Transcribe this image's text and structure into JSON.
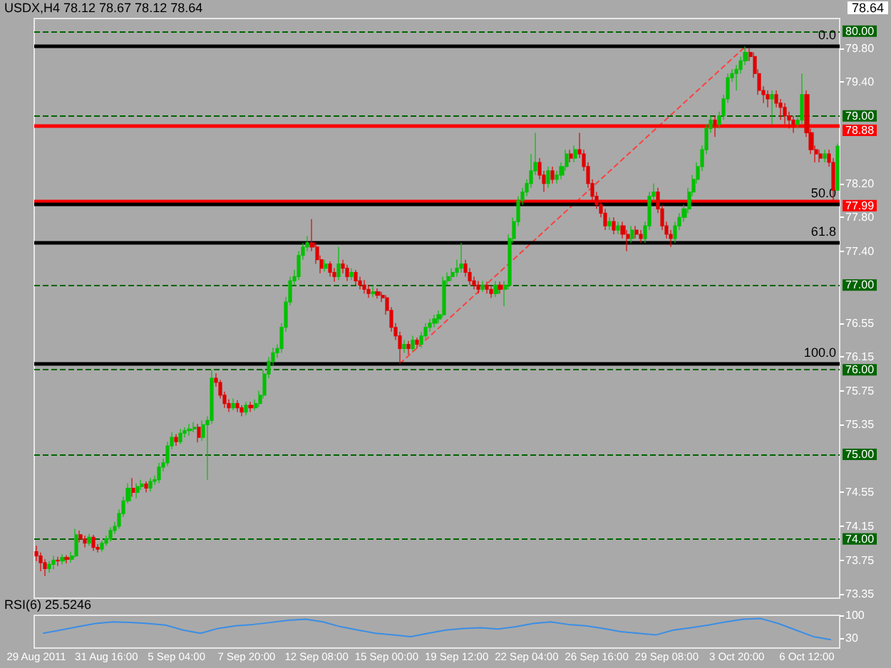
{
  "chart_data": [
    {
      "type": "candlestick",
      "title": "USDX,H4 78.12 78.67 78.12 78.64",
      "categories": [
        "29 Aug 2011",
        null,
        null,
        null,
        null,
        null,
        null,
        null,
        null,
        null,
        null,
        null,
        null,
        null,
        null,
        null,
        "31 Aug 16:00",
        null,
        null,
        null,
        null,
        null,
        null,
        null,
        null,
        null,
        null,
        null,
        null,
        null,
        null,
        null,
        "5 Sep 04:00",
        null,
        null,
        null,
        null,
        null,
        null,
        null,
        null,
        null,
        null,
        null,
        null,
        null,
        null,
        null,
        "7 Sep 20:00",
        null,
        null,
        null,
        null,
        null,
        null,
        null,
        null,
        null,
        null,
        null,
        null,
        null,
        null,
        null,
        "12 Sep 08:00",
        null,
        null,
        null,
        null,
        null,
        null,
        null,
        null,
        null,
        null,
        null,
        null,
        null,
        null,
        null,
        "15 Sep 00:00",
        null,
        null,
        null,
        null,
        null,
        null,
        null,
        null,
        null,
        null,
        null,
        null,
        null,
        null,
        null,
        "19 Sep 12:00",
        null,
        null,
        null,
        null,
        null,
        null,
        null,
        null,
        null,
        null,
        null,
        null,
        null,
        null,
        null,
        "22 Sep 04:00",
        null,
        null,
        null,
        null,
        null,
        null,
        null,
        null,
        null,
        null,
        null,
        null,
        null,
        null,
        null,
        "26 Sep 16:00",
        null,
        null,
        null,
        null,
        null,
        null,
        null,
        null,
        null,
        null,
        null,
        null,
        null,
        null,
        null,
        "29 Sep 08:00",
        null,
        null,
        null,
        null,
        null,
        null,
        null,
        null,
        null,
        null,
        null,
        null,
        null,
        null,
        null,
        "3 Oct 20:00",
        null,
        null,
        null,
        null,
        null,
        null,
        null,
        null,
        null,
        null,
        null,
        null,
        null,
        null,
        null,
        "6 Oct 12:00",
        null,
        null,
        null,
        null,
        null,
        null,
        null
      ],
      "ohlc": [
        [
          73.85,
          73.92,
          73.74,
          73.8
        ],
        [
          73.8,
          73.84,
          73.62,
          73.72
        ],
        [
          73.72,
          73.76,
          73.56,
          73.65
        ],
        [
          73.65,
          73.74,
          73.6,
          73.7
        ],
        [
          73.7,
          73.8,
          73.64,
          73.75
        ],
        [
          73.75,
          73.79,
          73.68,
          73.74
        ],
        [
          73.74,
          73.82,
          73.7,
          73.78
        ],
        [
          73.78,
          73.81,
          73.71,
          73.76
        ],
        [
          73.76,
          73.85,
          73.72,
          73.8
        ],
        [
          73.8,
          74.12,
          73.78,
          74.05
        ],
        [
          74.05,
          74.1,
          73.96,
          74.0
        ],
        [
          74.0,
          74.04,
          73.9,
          73.95
        ],
        [
          73.95,
          74.06,
          73.92,
          74.02
        ],
        [
          74.02,
          74.05,
          73.86,
          73.9
        ],
        [
          73.9,
          73.94,
          73.84,
          73.88
        ],
        [
          73.88,
          73.98,
          73.85,
          73.95
        ],
        [
          73.95,
          74.04,
          73.92,
          74.0
        ],
        [
          74.0,
          74.14,
          73.97,
          74.1
        ],
        [
          74.1,
          74.2,
          74.06,
          74.15
        ],
        [
          74.15,
          74.35,
          74.12,
          74.3
        ],
        [
          74.3,
          74.5,
          74.26,
          74.45
        ],
        [
          74.45,
          74.66,
          74.42,
          74.6
        ],
        [
          74.6,
          74.72,
          74.5,
          74.55
        ],
        [
          74.55,
          74.66,
          74.48,
          74.62
        ],
        [
          74.62,
          74.7,
          74.58,
          74.65
        ],
        [
          74.65,
          74.68,
          74.55,
          74.6
        ],
        [
          74.6,
          74.72,
          74.56,
          74.68
        ],
        [
          74.68,
          74.75,
          74.64,
          74.7
        ],
        [
          74.7,
          74.9,
          74.66,
          74.85
        ],
        [
          74.85,
          74.95,
          74.8,
          74.9
        ],
        [
          74.9,
          75.15,
          74.86,
          75.1
        ],
        [
          75.1,
          75.26,
          75.06,
          75.2
        ],
        [
          75.2,
          75.24,
          75.1,
          75.15
        ],
        [
          75.15,
          75.3,
          75.12,
          75.25
        ],
        [
          75.25,
          75.32,
          75.2,
          75.28
        ],
        [
          75.28,
          75.36,
          75.22,
          75.3
        ],
        [
          75.3,
          75.38,
          75.26,
          75.32
        ],
        [
          75.32,
          75.36,
          75.14,
          75.2
        ],
        [
          75.2,
          75.4,
          75.16,
          75.35
        ],
        [
          75.35,
          75.45,
          74.7,
          75.4
        ],
        [
          75.4,
          76.0,
          75.36,
          75.9
        ],
        [
          75.9,
          75.96,
          75.8,
          75.85
        ],
        [
          75.85,
          75.88,
          75.66,
          75.7
        ],
        [
          75.7,
          75.74,
          75.55,
          75.6
        ],
        [
          75.6,
          75.65,
          75.5,
          75.55
        ],
        [
          75.55,
          75.66,
          75.52,
          75.6
        ],
        [
          75.6,
          75.64,
          75.5,
          75.55
        ],
        [
          75.55,
          75.58,
          75.45,
          75.5
        ],
        [
          75.5,
          75.62,
          75.46,
          75.58
        ],
        [
          75.58,
          75.62,
          75.5,
          75.55
        ],
        [
          75.55,
          75.65,
          75.52,
          75.6
        ],
        [
          75.6,
          75.75,
          75.56,
          75.7
        ],
        [
          75.7,
          76.0,
          75.66,
          75.95
        ],
        [
          75.95,
          76.15,
          75.9,
          76.1
        ],
        [
          76.1,
          76.26,
          76.05,
          76.2
        ],
        [
          76.2,
          76.3,
          76.14,
          76.25
        ],
        [
          76.25,
          76.55,
          76.2,
          76.5
        ],
        [
          76.5,
          76.86,
          76.45,
          76.8
        ],
        [
          76.8,
          77.1,
          76.76,
          77.05
        ],
        [
          77.05,
          77.18,
          77.0,
          77.1
        ],
        [
          77.1,
          77.4,
          77.06,
          77.35
        ],
        [
          77.35,
          77.5,
          77.3,
          77.45
        ],
        [
          77.45,
          77.58,
          77.4,
          77.5
        ],
        [
          77.5,
          77.78,
          77.4,
          77.45
        ],
        [
          77.45,
          77.5,
          77.25,
          77.3
        ],
        [
          77.3,
          77.35,
          77.14,
          77.2
        ],
        [
          77.2,
          77.3,
          77.16,
          77.25
        ],
        [
          77.25,
          77.28,
          77.1,
          77.15
        ],
        [
          77.15,
          77.2,
          77.04,
          77.1
        ],
        [
          77.1,
          77.45,
          77.06,
          77.25
        ],
        [
          77.25,
          77.3,
          77.14,
          77.2
        ],
        [
          77.2,
          77.24,
          77.05,
          77.1
        ],
        [
          77.1,
          77.2,
          77.06,
          77.15
        ],
        [
          77.15,
          77.18,
          77.0,
          77.05
        ],
        [
          77.05,
          77.1,
          76.95,
          77.0
        ],
        [
          77.0,
          77.06,
          76.9,
          76.95
        ],
        [
          76.95,
          77.0,
          76.85,
          76.9
        ],
        [
          76.9,
          76.98,
          76.86,
          76.92
        ],
        [
          76.92,
          76.96,
          76.84,
          76.88
        ],
        [
          76.88,
          76.92,
          76.8,
          76.85
        ],
        [
          76.85,
          76.88,
          76.65,
          76.7
        ],
        [
          76.7,
          76.74,
          76.45,
          76.5
        ],
        [
          76.5,
          76.55,
          76.35,
          76.4
        ],
        [
          76.4,
          76.45,
          76.07,
          76.25
        ],
        [
          76.25,
          76.35,
          76.2,
          76.3
        ],
        [
          76.3,
          76.34,
          76.18,
          76.25
        ],
        [
          76.25,
          76.4,
          76.22,
          76.35
        ],
        [
          76.35,
          76.38,
          76.25,
          76.3
        ],
        [
          76.3,
          76.45,
          76.26,
          76.4
        ],
        [
          76.4,
          76.55,
          76.36,
          76.5
        ],
        [
          76.5,
          76.6,
          76.45,
          76.55
        ],
        [
          76.55,
          76.65,
          76.5,
          76.6
        ],
        [
          76.6,
          76.7,
          76.55,
          76.65
        ],
        [
          76.65,
          77.1,
          76.62,
          77.05
        ],
        [
          77.05,
          77.15,
          77.0,
          77.1
        ],
        [
          77.1,
          77.2,
          77.05,
          77.15
        ],
        [
          77.15,
          77.3,
          77.1,
          77.2
        ],
        [
          77.2,
          77.5,
          77.15,
          77.25
        ],
        [
          77.25,
          77.3,
          77.1,
          77.15
        ],
        [
          77.15,
          77.2,
          77.0,
          77.05
        ],
        [
          77.05,
          77.1,
          76.95,
          77.0
        ],
        [
          77.0,
          77.05,
          76.9,
          76.95
        ],
        [
          76.95,
          77.05,
          76.92,
          77.0
        ],
        [
          77.0,
          77.04,
          76.9,
          76.95
        ],
        [
          76.95,
          77.0,
          76.85,
          76.9
        ],
        [
          76.9,
          77.05,
          76.86,
          77.0
        ],
        [
          77.0,
          77.04,
          76.9,
          76.95
        ],
        [
          76.95,
          77.05,
          76.75,
          77.0
        ],
        [
          77.0,
          77.6,
          76.95,
          77.55
        ],
        [
          77.55,
          77.8,
          77.5,
          77.75
        ],
        [
          77.75,
          78.05,
          77.7,
          78.0
        ],
        [
          78.0,
          78.15,
          77.95,
          78.1
        ],
        [
          78.1,
          78.25,
          78.05,
          78.2
        ],
        [
          78.2,
          78.55,
          78.15,
          78.35
        ],
        [
          78.35,
          78.8,
          78.3,
          78.45
        ],
        [
          78.45,
          78.5,
          78.25,
          78.3
        ],
        [
          78.3,
          78.35,
          78.1,
          78.2
        ],
        [
          78.2,
          78.4,
          78.15,
          78.35
        ],
        [
          78.35,
          78.4,
          78.2,
          78.25
        ],
        [
          78.25,
          78.35,
          78.2,
          78.3
        ],
        [
          78.3,
          78.45,
          78.25,
          78.4
        ],
        [
          78.4,
          78.6,
          78.35,
          78.55
        ],
        [
          78.55,
          78.6,
          78.45,
          78.5
        ],
        [
          78.5,
          78.65,
          78.45,
          78.6
        ],
        [
          78.6,
          78.8,
          78.5,
          78.55
        ],
        [
          78.55,
          78.6,
          78.35,
          78.4
        ],
        [
          78.4,
          78.45,
          78.15,
          78.2
        ],
        [
          78.2,
          78.25,
          78.0,
          78.05
        ],
        [
          78.05,
          78.1,
          77.9,
          77.95
        ],
        [
          77.95,
          78.0,
          77.8,
          77.85
        ],
        [
          77.85,
          77.9,
          77.65,
          77.7
        ],
        [
          77.7,
          77.8,
          77.65,
          77.75
        ],
        [
          77.75,
          77.8,
          77.6,
          77.65
        ],
        [
          77.65,
          77.75,
          77.6,
          77.7
        ],
        [
          77.7,
          77.75,
          77.55,
          77.6
        ],
        [
          77.6,
          77.65,
          77.4,
          77.55
        ],
        [
          77.55,
          77.7,
          77.5,
          77.65
        ],
        [
          77.65,
          77.7,
          77.55,
          77.6
        ],
        [
          77.6,
          77.65,
          77.5,
          77.55
        ],
        [
          77.55,
          77.75,
          77.5,
          77.7
        ],
        [
          77.7,
          78.1,
          77.65,
          78.05
        ],
        [
          78.05,
          78.2,
          78.0,
          78.1
        ],
        [
          78.1,
          78.15,
          77.85,
          77.9
        ],
        [
          77.9,
          77.95,
          77.65,
          77.7
        ],
        [
          77.7,
          77.75,
          77.55,
          77.6
        ],
        [
          77.6,
          77.65,
          77.45,
          77.55
        ],
        [
          77.55,
          77.75,
          77.5,
          77.7
        ],
        [
          77.7,
          77.85,
          77.65,
          77.8
        ],
        [
          77.8,
          77.95,
          77.75,
          77.9
        ],
        [
          77.9,
          78.15,
          77.85,
          78.1
        ],
        [
          78.1,
          78.3,
          78.05,
          78.25
        ],
        [
          78.25,
          78.45,
          78.2,
          78.4
        ],
        [
          78.4,
          78.65,
          78.35,
          78.6
        ],
        [
          78.6,
          78.9,
          78.55,
          78.85
        ],
        [
          78.85,
          79.0,
          78.8,
          78.95
        ],
        [
          78.95,
          79.0,
          78.75,
          78.9
        ],
        [
          78.9,
          79.05,
          78.85,
          79.0
        ],
        [
          79.0,
          79.25,
          78.95,
          79.2
        ],
        [
          79.2,
          79.5,
          79.15,
          79.45
        ],
        [
          79.45,
          79.55,
          79.4,
          79.5
        ],
        [
          79.5,
          79.6,
          79.3,
          79.55
        ],
        [
          79.55,
          79.7,
          79.5,
          79.65
        ],
        [
          79.65,
          79.82,
          79.6,
          79.75
        ],
        [
          79.75,
          79.8,
          79.65,
          79.7
        ],
        [
          79.7,
          79.75,
          79.45,
          79.5
        ],
        [
          79.5,
          79.55,
          79.25,
          79.3
        ],
        [
          79.3,
          79.35,
          79.15,
          79.25
        ],
        [
          79.25,
          79.3,
          79.1,
          79.2
        ],
        [
          79.2,
          79.3,
          78.9,
          79.25
        ],
        [
          79.25,
          79.3,
          79.1,
          79.15
        ],
        [
          79.15,
          79.2,
          78.95,
          79.1
        ],
        [
          79.1,
          79.15,
          78.9,
          79.0
        ],
        [
          79.0,
          79.05,
          78.85,
          78.95
        ],
        [
          78.95,
          79.0,
          78.8,
          78.9
        ],
        [
          78.9,
          79.0,
          78.85,
          78.95
        ],
        [
          78.95,
          79.5,
          78.9,
          79.25
        ],
        [
          79.25,
          79.3,
          78.75,
          78.8
        ],
        [
          78.8,
          78.85,
          78.55,
          78.6
        ],
        [
          78.6,
          78.65,
          78.45,
          78.55
        ],
        [
          78.55,
          78.6,
          78.45,
          78.5
        ],
        [
          78.5,
          78.6,
          78.45,
          78.55
        ],
        [
          78.55,
          78.6,
          78.4,
          78.45
        ],
        [
          78.45,
          78.5,
          77.99,
          78.12
        ],
        [
          78.12,
          78.67,
          78.12,
          78.64
        ]
      ],
      "colors": [
        "#e00000",
        "#e00000",
        "#e00000",
        "#00c000",
        "#00c000",
        "#e00000",
        "#00c000",
        "#e00000",
        "#00c000",
        "#00c000",
        "#e00000",
        "#e00000",
        "#00c000",
        "#e00000",
        "#e00000",
        "#00c000",
        "#00c000",
        "#00c000",
        "#00c000",
        "#00c000",
        "#00c000",
        "#00c000",
        "#e00000",
        "#00c000",
        "#00c000",
        "#e00000",
        "#00c000",
        "#00c000",
        "#00c000",
        "#00c000",
        "#00c000",
        "#00c000",
        "#e00000",
        "#00c000",
        "#00c000",
        "#00c000",
        "#00c000",
        "#e00000",
        "#00c000",
        "#00c000",
        "#00c000",
        "#e00000",
        "#e00000",
        "#e00000",
        "#e00000",
        "#00c000",
        "#e00000",
        "#e00000",
        "#00c000",
        "#e00000",
        "#00c000",
        "#00c000",
        "#00c000",
        "#00c000",
        "#00c000",
        "#00c000",
        "#00c000",
        "#00c000",
        "#00c000",
        "#00c000",
        "#00c000",
        "#00c000",
        "#00c000",
        "#e00000",
        "#e00000",
        "#e00000",
        "#00c000",
        "#e00000",
        "#e00000",
        "#00c000",
        "#e00000",
        "#e00000",
        "#00c000",
        "#e00000",
        "#e00000",
        "#e00000",
        "#e00000",
        "#00c000",
        "#e00000",
        "#e00000",
        "#e00000",
        "#e00000",
        "#e00000",
        "#e00000",
        "#00c000",
        "#e00000",
        "#00c000",
        "#e00000",
        "#00c000",
        "#00c000",
        "#00c000",
        "#00c000",
        "#00c000",
        "#00c000",
        "#00c000",
        "#00c000",
        "#00c000",
        "#00c000",
        "#e00000",
        "#e00000",
        "#e00000",
        "#e00000",
        "#00c000",
        "#e00000",
        "#e00000",
        "#00c000",
        "#e00000",
        "#00c000",
        "#00c000",
        "#00c000",
        "#00c000",
        "#00c000",
        "#00c000",
        "#00c000",
        "#00c000",
        "#e00000",
        "#e00000",
        "#00c000",
        "#e00000",
        "#00c000",
        "#00c000",
        "#00c000",
        "#e00000",
        "#00c000",
        "#e00000",
        "#e00000",
        "#e00000",
        "#e00000",
        "#e00000",
        "#e00000",
        "#e00000",
        "#00c000",
        "#e00000",
        "#00c000",
        "#e00000",
        "#e00000",
        "#00c000",
        "#e00000",
        "#e00000",
        "#00c000",
        "#00c000",
        "#00c000",
        "#e00000",
        "#e00000",
        "#e00000",
        "#e00000",
        "#00c000",
        "#00c000",
        "#00c000",
        "#00c000",
        "#00c000",
        "#00c000",
        "#00c000",
        "#00c000",
        "#00c000",
        "#e00000",
        "#00c000",
        "#00c000",
        "#00c000",
        "#00c000",
        "#00c000",
        "#00c000",
        "#00c000",
        "#e00000",
        "#e00000",
        "#e00000",
        "#e00000",
        "#e00000",
        "#00c000",
        "#e00000",
        "#e00000",
        "#e00000",
        "#e00000",
        "#e00000",
        "#00c000",
        "#00c000",
        "#e00000",
        "#e00000",
        "#e00000",
        "#e00000",
        "#00c000",
        "#e00000",
        "#e00000",
        "#00c000"
      ],
      "ylim": [
        73.3,
        80.15
      ],
      "yticks": [
        {
          "value": 79.8,
          "label": "79.80"
        },
        {
          "value": 79.4,
          "label": "79.40"
        },
        {
          "value": 78.2,
          "label": "78.20"
        },
        {
          "value": 77.8,
          "label": "77.80"
        },
        {
          "value": 77.4,
          "label": "77.40"
        },
        {
          "value": 76.55,
          "label": "76.55"
        },
        {
          "value": 76.15,
          "label": "76.15"
        },
        {
          "value": 75.75,
          "label": "75.75"
        },
        {
          "value": 75.35,
          "label": "75.35"
        },
        {
          "value": 74.55,
          "label": "74.55"
        },
        {
          "value": 74.15,
          "label": "74.15"
        },
        {
          "value": 73.75,
          "label": "73.75"
        },
        {
          "value": 73.35,
          "label": "73.35"
        }
      ],
      "ref_lines": [
        {
          "axis": "y",
          "value": 80,
          "label": "80.00",
          "color": "#006400",
          "line_style": "dashed"
        },
        {
          "axis": "y",
          "value": 79,
          "label": "79.00",
          "color": "#006400",
          "line_style": "dashed"
        },
        {
          "axis": "y",
          "value": 77,
          "label": "77.00",
          "color": "#006400",
          "line_style": "dashed"
        },
        {
          "axis": "y",
          "value": 76,
          "label": "76.00",
          "color": "#006400",
          "line_style": "dashed"
        },
        {
          "axis": "y",
          "value": 75,
          "label": "75.00",
          "color": "#006400",
          "line_style": "dashed"
        },
        {
          "axis": "y",
          "value": 74,
          "label": "74.00",
          "color": "#006400",
          "line_style": "dashed"
        },
        {
          "axis": "y",
          "value": 78.88,
          "label": "78.88",
          "color": "#ff0000",
          "line_style": "solid"
        },
        {
          "axis": "y",
          "value": 77.99,
          "label": "77.99",
          "color": "#ff0000",
          "line_style": "solid"
        },
        {
          "axis": "y",
          "value": 79.82,
          "color": "#000000",
          "line_style": "solid"
        },
        {
          "axis": "y",
          "value": 77.95,
          "color": "#000000",
          "line_style": "solid"
        },
        {
          "axis": "y",
          "value": 77.5,
          "color": "#000000",
          "line_style": "solid"
        },
        {
          "axis": "y",
          "value": 76.07,
          "color": "#000000",
          "line_style": "solid"
        }
      ],
      "annotations": [
        {
          "text": "0.0",
          "y": 79.82
        },
        {
          "text": "50.0",
          "y": 77.95
        },
        {
          "text": "61.8",
          "y": 77.5
        },
        {
          "text": "100.0",
          "y": 76.07
        },
        "78.64"
      ],
      "series": [
        {
          "type": "line",
          "color": "#ff4040",
          "line_style": "dashed",
          "values": [
            null,
            null,
            null,
            null,
            null,
            null,
            null,
            null,
            null,
            null,
            null,
            null,
            null,
            null,
            null,
            null,
            null,
            null,
            null,
            null,
            null,
            null,
            null,
            null,
            null,
            null,
            null,
            null,
            null,
            null,
            null,
            null,
            null,
            null,
            null,
            null,
            null,
            null,
            null,
            null,
            null,
            null,
            null,
            null,
            null,
            null,
            null,
            null,
            null,
            null,
            null,
            null,
            null,
            null,
            null,
            null,
            null,
            null,
            null,
            null,
            null,
            null,
            null,
            null,
            null,
            null,
            null,
            null,
            null,
            null,
            null,
            null,
            null,
            null,
            null,
            null,
            null,
            null,
            null,
            null,
            null,
            null,
            null,
            76.07,
            null,
            null,
            null,
            null,
            null,
            null,
            null,
            null,
            null,
            null,
            null,
            null,
            null,
            null,
            null,
            null,
            null,
            null,
            null,
            null,
            null,
            null,
            null,
            null,
            null,
            null,
            null,
            null,
            null,
            null,
            null,
            null,
            null,
            null,
            null,
            null,
            null,
            null,
            null,
            null,
            null,
            null,
            null,
            null,
            null,
            null,
            null,
            null,
            null,
            null,
            null,
            null,
            null,
            null,
            null,
            null,
            null,
            null,
            null,
            null,
            null,
            null,
            null,
            null,
            null,
            null,
            null,
            null,
            null,
            null,
            null,
            null,
            null,
            null,
            null,
            null,
            null,
            null,
            79.82,
            null,
            null,
            null,
            null,
            null,
            null,
            null,
            null,
            null,
            null,
            null,
            null,
            null,
            null,
            null,
            null,
            null,
            null,
            null,
            null,
            null
          ]
        }
      ]
    },
    {
      "type": "line",
      "title": "RSI(6) 25.5246",
      "categories": [
        null,
        null,
        null,
        null,
        null,
        null,
        null,
        null,
        null,
        null,
        null,
        null,
        null,
        null,
        null,
        null,
        null,
        null,
        null,
        null,
        null,
        null,
        null,
        null,
        null,
        null,
        null,
        null,
        null,
        null,
        null,
        null,
        null,
        null,
        null,
        null,
        null,
        null,
        null,
        null,
        null,
        null,
        null,
        null,
        null,
        null
      ],
      "tick_labels": "y",
      "values": [
        45,
        55,
        65,
        75,
        80,
        78,
        75,
        70,
        55,
        45,
        60,
        68,
        72,
        78,
        85,
        88,
        80,
        65,
        55,
        45,
        40,
        35,
        45,
        55,
        60,
        62,
        58,
        65,
        75,
        80,
        72,
        68,
        60,
        50,
        45,
        40,
        55,
        62,
        70,
        80,
        88,
        90,
        75,
        55,
        35,
        25.5246
      ],
      "color": "#3a8ee6",
      "ylim": [
        0,
        100
      ],
      "yticks": [
        30,
        100
      ]
    }
  ]
}
